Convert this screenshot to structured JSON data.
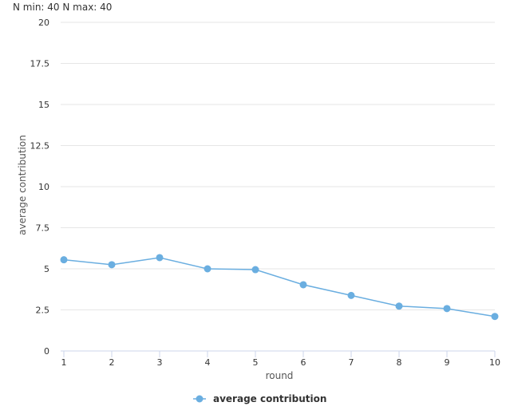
{
  "header": {
    "n_label": "N min: 40 N max: 40"
  },
  "chart_data": {
    "type": "line",
    "title": "",
    "xlabel": "round",
    "ylabel": "average contribution",
    "x": [
      1,
      2,
      3,
      4,
      5,
      6,
      7,
      8,
      9,
      10
    ],
    "x_tick_labels": [
      "1",
      "2",
      "3",
      "4",
      "5",
      "6",
      "7",
      "8",
      "9",
      "10"
    ],
    "y_ticks": [
      0,
      2.5,
      5,
      7.5,
      10,
      12.5,
      15,
      17.5,
      20
    ],
    "y_tick_labels": [
      "0",
      "2.5",
      "5",
      "7.5",
      "10",
      "12.5",
      "15",
      "17.5",
      "20"
    ],
    "ylim": [
      0,
      20
    ],
    "grid": true,
    "legend_position": "bottom-center",
    "series": [
      {
        "name": "average contribution",
        "color": "#6aaee0",
        "values": [
          5.55,
          5.25,
          5.68,
          5.0,
          4.95,
          4.03,
          3.38,
          2.73,
          2.58,
          2.1
        ]
      }
    ]
  }
}
